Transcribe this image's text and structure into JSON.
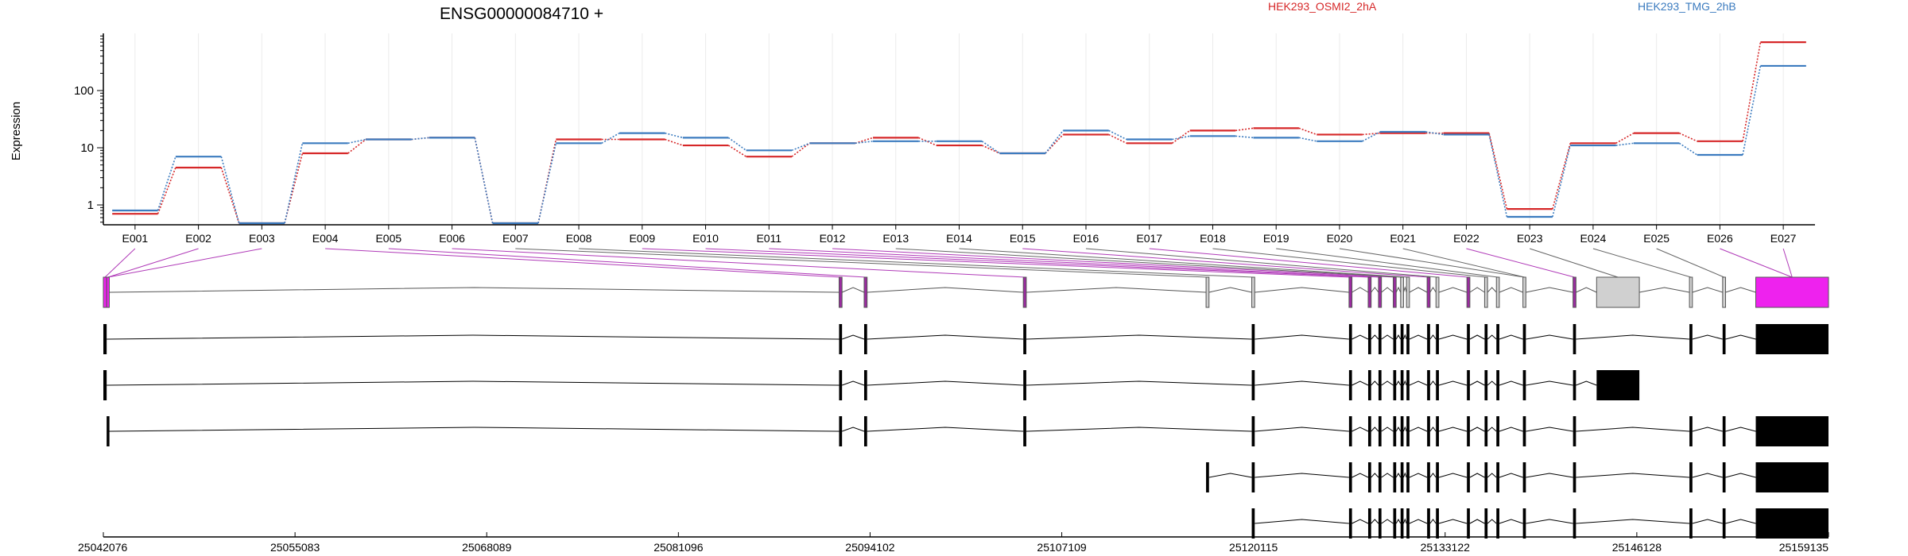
{
  "chart_data": {
    "type": "line",
    "title": "ENSG00000084710 +",
    "ylabel": "Expression",
    "y_scale": "log",
    "yticks": [
      1,
      10,
      100
    ],
    "grid": "vertical lines at exon centers",
    "legend": "top-right",
    "exons": [
      "E001",
      "E002",
      "E003",
      "E004",
      "E005",
      "E006",
      "E007",
      "E008",
      "E009",
      "E010",
      "E011",
      "E012",
      "E013",
      "E014",
      "E015",
      "E016",
      "E017",
      "E018",
      "E019",
      "E020",
      "E021",
      "E022",
      "E023",
      "E024",
      "E025",
      "E026",
      "E027"
    ],
    "series": [
      {
        "name": "HEK293_OSMI2_2hA",
        "color": "#d62728",
        "values": [
          0.7,
          4.5,
          0.48,
          8,
          14,
          15,
          0.48,
          14,
          14,
          11,
          7,
          12,
          15,
          11,
          8,
          17,
          12,
          20,
          22,
          17,
          18,
          18,
          0.85,
          12,
          18,
          13,
          700
        ]
      },
      {
        "name": "HEK293_TMG_2hB",
        "color": "#3b7bbf",
        "values": [
          0.8,
          7,
          0.48,
          12,
          14,
          15,
          0.48,
          12,
          18,
          15,
          9,
          12,
          13,
          13,
          8,
          20,
          14,
          16,
          15,
          13,
          19,
          17,
          0.62,
          11,
          12,
          7.5,
          270
        ]
      }
    ],
    "genome_axis": {
      "ticks": [
        "25042076",
        "25055083",
        "25068089",
        "25081096",
        "25094102",
        "25107109",
        "25120115",
        "25133122",
        "25146128",
        "25159135"
      ],
      "start": 25042076,
      "end": 25159135
    },
    "gene_model": {
      "exons": [
        {
          "start": 25042076,
          "end": 25042300,
          "color": "#ee22ee"
        },
        {
          "start": 25042300,
          "end": 25042480,
          "color": "#ee22ee"
        },
        {
          "start": 25092000,
          "end": 25092200,
          "color": "#9b2ba0"
        },
        {
          "start": 25093700,
          "end": 25093900,
          "color": "#9b2ba0"
        },
        {
          "start": 25104500,
          "end": 25104700,
          "color": "#9b2ba0"
        },
        {
          "start": 25116900,
          "end": 25117100,
          "color": "#d0d0d0"
        },
        {
          "start": 25120000,
          "end": 25120200,
          "color": "#d0d0d0"
        },
        {
          "start": 25126600,
          "end": 25126800,
          "color": "#9b2ba0"
        },
        {
          "start": 25127900,
          "end": 25128100,
          "color": "#9b2ba0"
        },
        {
          "start": 25128600,
          "end": 25128800,
          "color": "#9b2ba0"
        },
        {
          "start": 25129600,
          "end": 25129800,
          "color": "#9b2ba0"
        },
        {
          "start": 25130100,
          "end": 25130300,
          "color": "#d0d0d0"
        },
        {
          "start": 25130500,
          "end": 25130700,
          "color": "#d0d0d0"
        },
        {
          "start": 25131900,
          "end": 25132100,
          "color": "#9b2ba0"
        },
        {
          "start": 25132500,
          "end": 25132700,
          "color": "#d0d0d0"
        },
        {
          "start": 25134600,
          "end": 25134800,
          "color": "#9b2ba0"
        },
        {
          "start": 25135800,
          "end": 25136000,
          "color": "#d0d0d0"
        },
        {
          "start": 25136600,
          "end": 25136800,
          "color": "#d0d0d0"
        },
        {
          "start": 25138400,
          "end": 25138600,
          "color": "#d0d0d0"
        },
        {
          "start": 25141800,
          "end": 25142000,
          "color": "#9b2ba0"
        },
        {
          "start": 25143400,
          "end": 25146300,
          "color": "#d0d0d0"
        },
        {
          "start": 25149700,
          "end": 25149900,
          "color": "#d0d0d0"
        },
        {
          "start": 25151950,
          "end": 25152150,
          "color": "#d0d0d0"
        },
        {
          "start": 25154200,
          "end": 25159135,
          "color": "#ee22ee"
        }
      ],
      "exon_label_links": [
        0,
        1,
        1,
        2,
        3,
        4,
        5,
        6,
        7,
        8,
        9,
        10,
        11,
        12,
        13,
        14,
        15,
        16,
        17,
        18,
        18,
        19,
        20,
        21,
        22,
        23,
        23
      ]
    },
    "transcripts": [
      [
        [
          25042076,
          25042300
        ],
        [
          25092000,
          25092200
        ],
        [
          25093700,
          25093900
        ],
        [
          25104500,
          25104700
        ],
        [
          25120000,
          25120200
        ],
        [
          25126600,
          25126800
        ],
        [
          25127900,
          25128100
        ],
        [
          25128600,
          25128800
        ],
        [
          25129600,
          25129800
        ],
        [
          25130100,
          25130300
        ],
        [
          25130500,
          25130700
        ],
        [
          25131900,
          25132100
        ],
        [
          25132500,
          25132700
        ],
        [
          25134600,
          25134800
        ],
        [
          25135800,
          25136000
        ],
        [
          25136600,
          25136800
        ],
        [
          25138400,
          25138600
        ],
        [
          25141800,
          25142000
        ],
        [
          25149700,
          25149900
        ],
        [
          25151950,
          25152150
        ],
        [
          25154200,
          25159135
        ]
      ],
      [
        [
          25042076,
          25042300
        ],
        [
          25092000,
          25092200
        ],
        [
          25093700,
          25093900
        ],
        [
          25104500,
          25104700
        ],
        [
          25120000,
          25120200
        ],
        [
          25126600,
          25126800
        ],
        [
          25127900,
          25128100
        ],
        [
          25128600,
          25128800
        ],
        [
          25129600,
          25129800
        ],
        [
          25130100,
          25130300
        ],
        [
          25130500,
          25130700
        ],
        [
          25131900,
          25132100
        ],
        [
          25132500,
          25132700
        ],
        [
          25134600,
          25134800
        ],
        [
          25135800,
          25136000
        ],
        [
          25136600,
          25136800
        ],
        [
          25138400,
          25138600
        ],
        [
          25141800,
          25142000
        ],
        [
          25143400,
          25146300
        ]
      ],
      [
        [
          25042300,
          25042480
        ],
        [
          25092000,
          25092200
        ],
        [
          25093700,
          25093900
        ],
        [
          25104500,
          25104700
        ],
        [
          25120000,
          25120200
        ],
        [
          25126600,
          25126800
        ],
        [
          25127900,
          25128100
        ],
        [
          25128600,
          25128800
        ],
        [
          25129600,
          25129800
        ],
        [
          25130100,
          25130300
        ],
        [
          25130500,
          25130700
        ],
        [
          25131900,
          25132100
        ],
        [
          25132500,
          25132700
        ],
        [
          25134600,
          25134800
        ],
        [
          25135800,
          25136000
        ],
        [
          25136600,
          25136800
        ],
        [
          25138400,
          25138600
        ],
        [
          25141800,
          25142000
        ],
        [
          25149700,
          25149900
        ],
        [
          25151950,
          25152150
        ],
        [
          25154200,
          25159135
        ]
      ],
      [
        [
          25116900,
          25117100
        ],
        [
          25120000,
          25120200
        ],
        [
          25126600,
          25126800
        ],
        [
          25127900,
          25128100
        ],
        [
          25128600,
          25128800
        ],
        [
          25129600,
          25129800
        ],
        [
          25130100,
          25130300
        ],
        [
          25130500,
          25130700
        ],
        [
          25131900,
          25132100
        ],
        [
          25132500,
          25132700
        ],
        [
          25134600,
          25134800
        ],
        [
          25135800,
          25136000
        ],
        [
          25136600,
          25136800
        ],
        [
          25138400,
          25138600
        ],
        [
          25141800,
          25142000
        ],
        [
          25149700,
          25149900
        ],
        [
          25151950,
          25152150
        ],
        [
          25154200,
          25159135
        ]
      ],
      [
        [
          25120000,
          25120200
        ],
        [
          25126600,
          25126800
        ],
        [
          25127900,
          25128100
        ],
        [
          25128600,
          25128800
        ],
        [
          25129600,
          25129800
        ],
        [
          25130100,
          25130300
        ],
        [
          25130500,
          25130700
        ],
        [
          25131900,
          25132100
        ],
        [
          25132500,
          25132700
        ],
        [
          25134600,
          25134800
        ],
        [
          25135800,
          25136000
        ],
        [
          25136600,
          25136800
        ],
        [
          25138400,
          25138600
        ],
        [
          25141800,
          25142000
        ],
        [
          25149700,
          25149900
        ],
        [
          25151950,
          25152150
        ],
        [
          25154200,
          25159135
        ]
      ]
    ]
  }
}
